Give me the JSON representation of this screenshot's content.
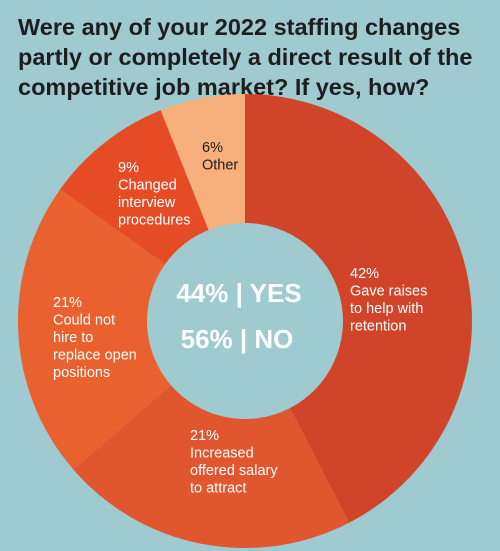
{
  "chart_data": {
    "type": "pie",
    "donut": true,
    "title": "Were any of your 2022 staffing changes partly or completely a direct result of the competitive job market? If yes, how?",
    "center_labels": [
      "44% | YES",
      "56% | NO"
    ],
    "slices": [
      {
        "label_lines": [
          "42%",
          "Gave raises",
          "to help with",
          "retention"
        ],
        "value": 42,
        "color": "#d0452a"
      },
      {
        "label_lines": [
          "21%",
          "Increased",
          "offered salary",
          "to attract"
        ],
        "value": 21,
        "color": "#e0562e"
      },
      {
        "label_lines": [
          "21%",
          "Could not",
          "hire to",
          "replace open",
          "positions"
        ],
        "value": 21,
        "color": "#e9612f"
      },
      {
        "label_lines": [
          "9%",
          "Changed",
          "interview",
          "procedures"
        ],
        "value": 9,
        "color": "#e54c26"
      },
      {
        "label_lines": [
          "6%",
          "Other"
        ],
        "value": 6,
        "color": "#f7b07c"
      }
    ]
  }
}
